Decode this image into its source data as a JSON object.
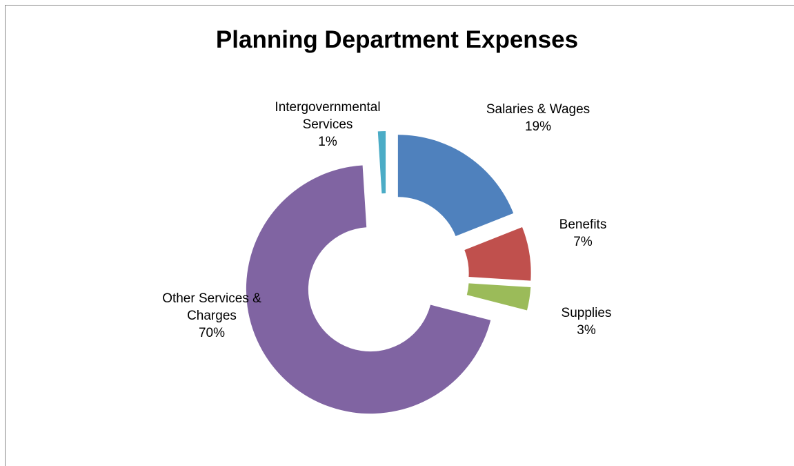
{
  "chart_data": {
    "type": "donut",
    "title": "Planning Department Expenses",
    "categories": [
      "Salaries & Wages",
      "Benefits",
      "Supplies",
      "Other Services & Charges",
      "Intergovernmental Services"
    ],
    "values": [
      19,
      7,
      3,
      70,
      1
    ],
    "value_labels": [
      "19%",
      "7%",
      "3%",
      "70%",
      "1%"
    ],
    "colors": [
      "#4f81bd",
      "#c0504d",
      "#9bbb59",
      "#8064a2",
      "#4bacc6"
    ]
  }
}
